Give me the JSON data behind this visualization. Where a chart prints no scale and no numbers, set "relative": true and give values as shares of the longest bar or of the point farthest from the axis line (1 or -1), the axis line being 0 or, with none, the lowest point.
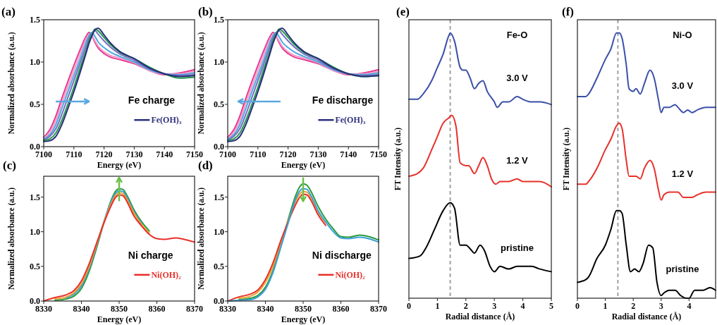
{
  "chart_data": [
    {
      "type": "line",
      "title": "(a)",
      "xlabel": "Energy (eV)",
      "ylabel": "Normalized absorbance (a.u.)",
      "legend_title": "Fe charge",
      "legend": "right",
      "xlim": [
        7100,
        7150
      ],
      "ylim": [
        0,
        1.5
      ],
      "xticks": [
        7100,
        7110,
        7120,
        7130,
        7140,
        7150
      ],
      "yticks": [
        {
          "value": 0,
          "label": "0.0"
        },
        {
          "value": 0.5,
          "label": "0.5"
        },
        {
          "value": 1,
          "label": "1.0"
        },
        {
          "value": 1.5,
          "label": "1.5"
        }
      ],
      "x": [
        7100,
        7102,
        7104,
        7106,
        7108,
        7110,
        7112,
        7114,
        7115,
        7116,
        7117,
        7118,
        7120,
        7122,
        7125,
        7130,
        7135,
        7140,
        7145,
        7150
      ],
      "series": [
        {
          "color": "#e8358f",
          "values": [
            0.11,
            0.2,
            0.36,
            0.57,
            0.77,
            0.96,
            1.14,
            1.3,
            1.35,
            1.31,
            1.23,
            1.17,
            1.1,
            1.06,
            1.03,
            0.98,
            0.9,
            0.85,
            0.87,
            0.91
          ]
        },
        {
          "color": "#f29ac6",
          "values": [
            0.1,
            0.17,
            0.31,
            0.51,
            0.71,
            0.9,
            1.09,
            1.27,
            1.33,
            1.31,
            1.25,
            1.19,
            1.12,
            1.08,
            1.05,
            0.99,
            0.9,
            0.86,
            0.86,
            0.89
          ]
        },
        {
          "color": "#4aa8e0",
          "values": [
            0.09,
            0.14,
            0.26,
            0.45,
            0.65,
            0.84,
            1.03,
            1.23,
            1.31,
            1.35,
            1.3,
            1.24,
            1.17,
            1.12,
            1.07,
            1.0,
            0.91,
            0.86,
            0.85,
            0.87
          ]
        },
        {
          "color": "#7a6cc0",
          "values": [
            0.08,
            0.12,
            0.21,
            0.38,
            0.58,
            0.78,
            0.98,
            1.18,
            1.28,
            1.34,
            1.37,
            1.33,
            1.25,
            1.18,
            1.1,
            1.02,
            0.92,
            0.86,
            0.84,
            0.85
          ]
        },
        {
          "color": "#1f9a4a",
          "values": [
            0.07,
            0.09,
            0.16,
            0.31,
            0.5,
            0.7,
            0.92,
            1.13,
            1.25,
            1.33,
            1.39,
            1.37,
            1.29,
            1.21,
            1.12,
            1.04,
            0.94,
            0.86,
            0.81,
            0.82
          ]
        },
        {
          "name": "Fe(OH)₃",
          "color": "#2b2d7c",
          "values": [
            0.06,
            0.07,
            0.12,
            0.26,
            0.45,
            0.65,
            0.87,
            1.1,
            1.22,
            1.31,
            1.38,
            1.4,
            1.32,
            1.23,
            1.13,
            1.04,
            0.93,
            0.86,
            0.83,
            0.84
          ]
        }
      ]
    },
    {
      "type": "line",
      "title": "(b)",
      "xlabel": "Energy (eV)",
      "ylabel": "Normalized absorbance (a.u.)",
      "legend_title": "Fe discharge",
      "legend": "right",
      "xlim": [
        7100,
        7150
      ],
      "ylim": [
        0,
        1.5
      ],
      "xticks": [
        7100,
        7110,
        7120,
        7130,
        7140,
        7150
      ],
      "yticks": [
        {
          "value": 0,
          "label": "0.0"
        },
        {
          "value": 0.5,
          "label": "0.5"
        },
        {
          "value": 1,
          "label": "1.0"
        },
        {
          "value": 1.5,
          "label": "1.5"
        }
      ],
      "x": [
        7100,
        7102,
        7104,
        7106,
        7108,
        7110,
        7112,
        7114,
        7115,
        7116,
        7117,
        7118,
        7120,
        7122,
        7125,
        7130,
        7135,
        7140,
        7145,
        7150
      ],
      "series": [
        {
          "color": "#e8358f",
          "values": [
            0.11,
            0.2,
            0.36,
            0.57,
            0.77,
            0.96,
            1.14,
            1.3,
            1.35,
            1.31,
            1.23,
            1.17,
            1.1,
            1.06,
            1.03,
            0.98,
            0.9,
            0.85,
            0.87,
            0.91
          ]
        },
        {
          "color": "#f29ac6",
          "values": [
            0.1,
            0.17,
            0.31,
            0.51,
            0.71,
            0.9,
            1.09,
            1.27,
            1.33,
            1.31,
            1.25,
            1.19,
            1.12,
            1.08,
            1.05,
            0.99,
            0.9,
            0.86,
            0.86,
            0.89
          ]
        },
        {
          "color": "#4aa8e0",
          "values": [
            0.09,
            0.14,
            0.26,
            0.45,
            0.65,
            0.84,
            1.03,
            1.23,
            1.31,
            1.35,
            1.3,
            1.24,
            1.17,
            1.12,
            1.07,
            1.0,
            0.91,
            0.86,
            0.85,
            0.87
          ]
        },
        {
          "color": "#7a6cc0",
          "values": [
            0.08,
            0.12,
            0.21,
            0.38,
            0.58,
            0.78,
            0.98,
            1.18,
            1.28,
            1.34,
            1.37,
            1.33,
            1.25,
            1.18,
            1.1,
            1.02,
            0.92,
            0.86,
            0.84,
            0.85
          ]
        },
        {
          "color": "#1f9a4a",
          "values": [
            0.07,
            0.09,
            0.16,
            0.31,
            0.5,
            0.7,
            0.92,
            1.13,
            1.25,
            1.33,
            1.39,
            1.37,
            1.29,
            1.21,
            1.12,
            1.04,
            0.94,
            0.86,
            0.83,
            0.84
          ]
        },
        {
          "name": "Fe(OH)₃",
          "color": "#2b2d7c",
          "values": [
            0.06,
            0.07,
            0.12,
            0.26,
            0.45,
            0.65,
            0.87,
            1.1,
            1.22,
            1.31,
            1.38,
            1.4,
            1.32,
            1.23,
            1.13,
            1.04,
            0.93,
            0.86,
            0.83,
            0.84
          ]
        }
      ]
    },
    {
      "type": "line",
      "title": "(c)",
      "xlabel": "Energy (eV)",
      "ylabel": "Normalized absorbance (a.u.)",
      "legend_title": "Ni charge",
      "legend": "right",
      "xlim": [
        8330,
        8370
      ],
      "ylim": [
        0,
        1.8
      ],
      "xticks": [
        8330,
        8340,
        8350,
        8360,
        8370
      ],
      "yticks": [
        {
          "value": 0,
          "label": "0.0"
        },
        {
          "value": 0.5,
          "label": "0.5"
        },
        {
          "value": 1,
          "label": "1.0"
        },
        {
          "value": 1.5,
          "label": "1.5"
        }
      ],
      "x": [
        8330,
        8333,
        8336,
        8338,
        8340,
        8342,
        8344,
        8346,
        8348,
        8349,
        8350,
        8351,
        8352,
        8354,
        8356,
        8358,
        8360,
        8362,
        8365,
        8368,
        8370
      ],
      "series": [
        {
          "color": "#2a9a40",
          "values": [
            null,
            0.01,
            0.03,
            0.07,
            0.18,
            0.42,
            0.76,
            1.14,
            1.47,
            1.58,
            1.62,
            1.61,
            1.53,
            1.31,
            1.14,
            1.01,
            null,
            null,
            null,
            null,
            null
          ]
        },
        {
          "color": "#3aa0d8",
          "values": [
            null,
            null,
            0.05,
            0.1,
            0.22,
            0.46,
            0.79,
            1.15,
            1.45,
            1.55,
            1.59,
            1.58,
            1.5,
            1.28,
            1.12,
            null,
            null,
            null,
            null,
            null,
            null
          ]
        },
        {
          "color": "#f0a030",
          "values": [
            null,
            0.03,
            0.06,
            0.12,
            0.25,
            0.49,
            0.81,
            1.14,
            1.42,
            1.52,
            1.56,
            1.55,
            1.47,
            1.26,
            1.1,
            0.98,
            null,
            null,
            null,
            null,
            null
          ]
        },
        {
          "name": "Ni(OH)₂",
          "color": "#e8302a",
          "values": [
            0.0,
            0.05,
            0.09,
            0.15,
            0.29,
            0.53,
            0.83,
            1.13,
            1.39,
            1.49,
            1.53,
            1.52,
            1.44,
            1.22,
            1.08,
            0.96,
            0.9,
            0.89,
            0.91,
            0.88,
            0.85
          ]
        }
      ]
    },
    {
      "type": "line",
      "title": "(d)",
      "xlabel": "Energy (eV)",
      "ylabel": "Normalized absorbance (a.u.)",
      "legend_title": "Ni discharge",
      "legend": "right",
      "xlim": [
        8330,
        8370
      ],
      "ylim": [
        0,
        1.8
      ],
      "xticks": [
        8330,
        8340,
        8350,
        8360,
        8370
      ],
      "yticks": [
        {
          "value": 0,
          "label": "0.0"
        },
        {
          "value": 0.5,
          "label": "0.5"
        },
        {
          "value": 1,
          "label": "1.0"
        },
        {
          "value": 1.5,
          "label": "1.5"
        }
      ],
      "x": [
        8330,
        8333,
        8336,
        8338,
        8340,
        8342,
        8344,
        8346,
        8348,
        8349,
        8350,
        8351,
        8352,
        8354,
        8356,
        8358,
        8360,
        8362,
        8365,
        8368,
        8370
      ],
      "series": [
        {
          "color": "#2a9a40",
          "values": [
            null,
            0.02,
            0.04,
            0.08,
            0.2,
            0.44,
            0.79,
            1.17,
            1.52,
            1.64,
            1.69,
            1.67,
            1.59,
            1.36,
            1.18,
            1.04,
            0.93,
            0.92,
            0.95,
            0.92,
            0.88
          ]
        },
        {
          "color": "#f0a030",
          "values": [
            null,
            0.04,
            0.07,
            0.13,
            0.27,
            0.5,
            0.83,
            1.15,
            1.44,
            1.54,
            1.58,
            1.57,
            1.5,
            1.28,
            1.13,
            null,
            null,
            null,
            null,
            null,
            null
          ]
        },
        {
          "name": "Ni(OH)₂",
          "color": "#e8302a",
          "values": [
            0.0,
            0.06,
            0.1,
            0.16,
            0.31,
            0.55,
            0.86,
            1.14,
            1.39,
            1.49,
            1.54,
            1.53,
            1.46,
            1.24,
            1.09,
            null,
            null,
            null,
            null,
            null,
            null
          ]
        },
        {
          "color": "#3aa0d8",
          "values": [
            0.0,
            0.01,
            0.02,
            0.06,
            0.17,
            0.41,
            0.76,
            1.12,
            1.47,
            1.58,
            1.62,
            1.61,
            1.53,
            1.3,
            1.14,
            1.0,
            0.91,
            0.9,
            0.92,
            0.89,
            0.85
          ]
        }
      ]
    },
    {
      "type": "line",
      "title": "(e)",
      "xlabel": "Radial distance (Å)",
      "ylabel": "FT Intensity (a.u.)",
      "relative": true,
      "annotations": [
        "Fe-O"
      ],
      "xlim": [
        0,
        5
      ],
      "xticks": [
        0,
        1,
        2,
        3,
        4,
        5
      ],
      "ref_lines": [
        {
          "axis": "x",
          "value": 1.45,
          "color": "#a0a0a0",
          "line_style": "dashed"
        }
      ],
      "series": [
        {
          "name": "3.0 V",
          "color": "#3a4fa8",
          "x": [
            0,
            0.3,
            0.5,
            0.8,
            1.0,
            1.2,
            1.4,
            1.45,
            1.6,
            1.8,
            1.9,
            2.0,
            2.15,
            2.3,
            2.45,
            2.6,
            2.75,
            3.0,
            3.1,
            3.3,
            3.5,
            3.8,
            4.0,
            4.3,
            4.6,
            5.0
          ],
          "values": [
            0.75,
            0.75,
            0.77,
            0.82,
            0.87,
            0.92,
            0.99,
            1,
            0.97,
            0.87,
            0.86,
            0.86,
            0.83,
            0.79,
            0.81,
            0.82,
            0.78,
            0.74,
            0.72,
            0.74,
            0.74,
            0.76,
            0.75,
            0.74,
            0.74,
            0.73
          ]
        },
        {
          "name": "1.2 V",
          "color": "#e8302a",
          "x": [
            0,
            0.3,
            0.5,
            0.8,
            1.0,
            1.2,
            1.4,
            1.5,
            1.65,
            1.8,
            2.0,
            2.1,
            2.3,
            2.45,
            2.6,
            2.75,
            2.9,
            3.05,
            3.2,
            3.5,
            3.8,
            4.0,
            4.3,
            4.6,
            5.0
          ],
          "values": [
            0.46,
            0.47,
            0.49,
            0.56,
            0.61,
            0.66,
            0.68,
            0.69,
            0.65,
            0.51,
            0.5,
            0.5,
            0.47,
            0.5,
            0.53,
            0.5,
            0.45,
            0.43,
            0.44,
            0.44,
            0.45,
            0.44,
            0.44,
            0.44,
            0.42
          ]
        },
        {
          "name": "pristine",
          "color": "#000000",
          "x": [
            0,
            0.4,
            0.6,
            0.9,
            1.2,
            1.45,
            1.6,
            1.8,
            2.0,
            2.2,
            2.3,
            2.5,
            2.65,
            2.85,
            3.0,
            3.2,
            3.5,
            3.8,
            4.0,
            4.3,
            4.6,
            5.0
          ],
          "values": [
            0.15,
            0.16,
            0.19,
            0.26,
            0.33,
            0.36,
            0.34,
            0.2,
            0.2,
            0.18,
            0.17,
            0.2,
            0.18,
            0.12,
            0.1,
            0.12,
            0.11,
            0.12,
            0.12,
            0.12,
            0.11,
            0.1
          ]
        }
      ]
    },
    {
      "type": "line",
      "title": "(f)",
      "xlabel": "Radial distance (Å)",
      "ylabel": "FT Intensity (a.u.)",
      "relative": true,
      "annotations": [
        "Ni-O"
      ],
      "xlim": [
        0,
        4.95
      ],
      "xticks": [
        0,
        1,
        2,
        3,
        4
      ],
      "ref_lines": [
        {
          "axis": "x",
          "value": 1.45,
          "color": "#a0a0a0",
          "line_style": "dashed"
        }
      ],
      "series": [
        {
          "name": "3.0 V",
          "color": "#3a4fa8",
          "x": [
            0,
            0.3,
            0.4,
            0.7,
            1.0,
            1.2,
            1.4,
            1.5,
            1.6,
            1.75,
            1.85,
            2.0,
            2.1,
            2.25,
            2.4,
            2.6,
            2.75,
            2.9,
            3.0,
            3.1,
            3.2,
            3.3,
            3.5,
            3.6,
            3.8,
            3.95,
            4.1,
            4.3,
            4.6,
            4.95
          ],
          "values": [
            0.76,
            0.76,
            0.77,
            0.83,
            0.9,
            0.94,
            1,
            1,
            0.98,
            0.88,
            0.79,
            0.78,
            0.79,
            0.77,
            0.81,
            0.86,
            0.83,
            0.75,
            0.7,
            0.72,
            0.72,
            0.72,
            0.73,
            0.72,
            0.7,
            0.71,
            0.7,
            0.71,
            0.72,
            0.72
          ]
        },
        {
          "name": "1.2 V",
          "color": "#e8302a",
          "x": [
            0,
            0.3,
            0.4,
            0.7,
            1.0,
            1.2,
            1.4,
            1.5,
            1.6,
            1.75,
            1.85,
            2.0,
            2.1,
            2.25,
            2.4,
            2.6,
            2.75,
            2.9,
            3.0,
            3.1,
            3.3,
            3.5,
            3.6,
            3.8,
            3.95,
            4.1,
            4.3,
            4.6,
            4.95
          ],
          "values": [
            0.43,
            0.43,
            0.44,
            0.49,
            0.56,
            0.6,
            0.65,
            0.66,
            0.64,
            0.52,
            0.46,
            0.46,
            0.46,
            0.45,
            0.49,
            0.52,
            0.49,
            0.41,
            0.37,
            0.39,
            0.4,
            0.4,
            0.4,
            0.38,
            0.38,
            0.38,
            0.39,
            0.4,
            0.4
          ]
        },
        {
          "name": "pristine",
          "color": "#000000",
          "x": [
            0,
            0.3,
            0.4,
            0.7,
            1.0,
            1.2,
            1.4,
            1.5,
            1.6,
            1.75,
            1.9,
            2.05,
            2.2,
            2.35,
            2.55,
            2.7,
            2.85,
            3.0,
            3.1,
            3.3,
            3.5,
            3.7,
            3.9,
            4.0,
            4.2,
            4.5,
            4.75,
            4.95
          ],
          "values": [
            0.06,
            0.07,
            0.08,
            0.15,
            0.2,
            0.26,
            0.33,
            0.33,
            0.32,
            0.2,
            0.1,
            0.11,
            0.1,
            0.13,
            0.2,
            0.19,
            0.06,
            0.01,
            0.02,
            0.03,
            0.03,
            0.01,
            0,
            0,
            0.03,
            0.03,
            0.04,
            0.03
          ]
        }
      ]
    }
  ]
}
